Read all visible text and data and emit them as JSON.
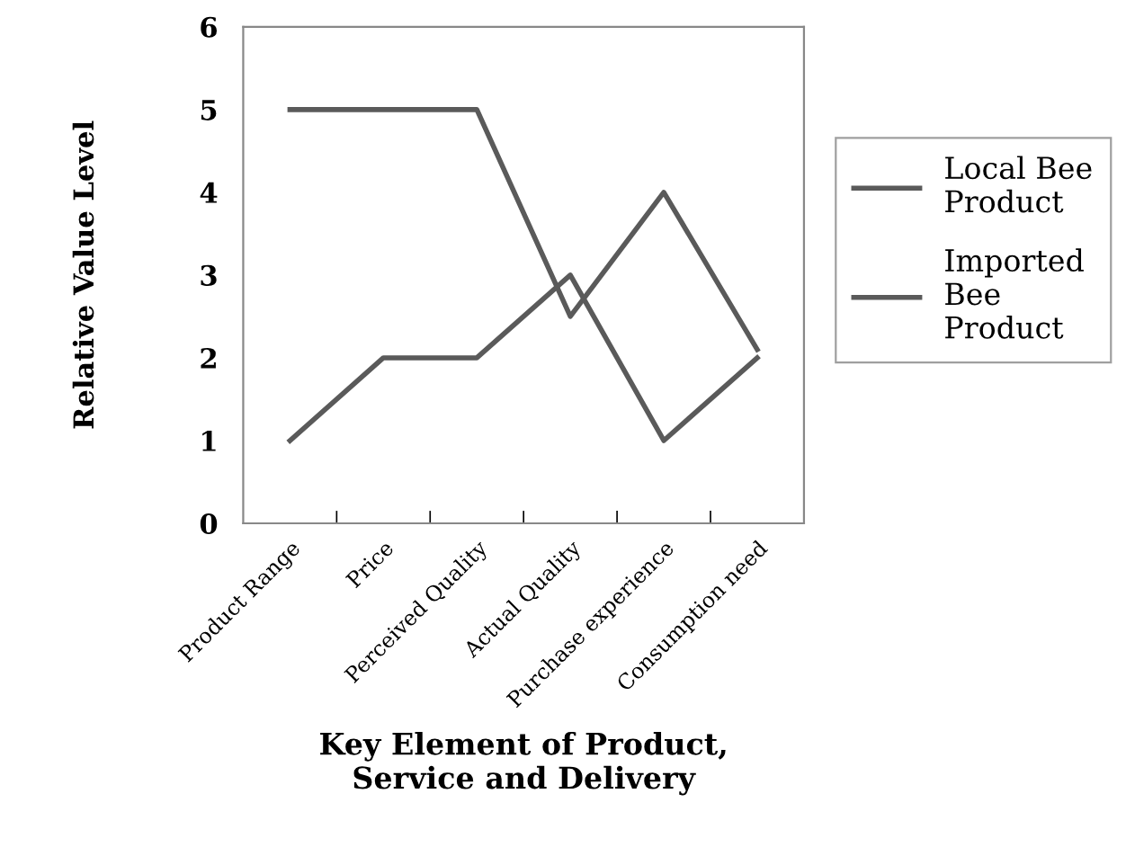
{
  "chart_data": {
    "type": "line",
    "xlabel": "Key Element of Product,\nService and Delivery",
    "ylabel": "Relative Value Level",
    "categories": [
      "Product Range",
      "Price",
      "Perceived Quality",
      "Actual Quality",
      "Purchase experience",
      "Consumption need"
    ],
    "series": [
      {
        "name": "Local Bee\nProduct",
        "color": "#5a5a5a",
        "values": [
          5,
          5,
          5,
          2.5,
          4,
          2.1
        ]
      },
      {
        "name": "Imported\nBee\nProduct",
        "color": "#5a5a5a",
        "values": [
          1,
          2,
          2,
          3,
          1,
          2
        ]
      }
    ],
    "ylim": [
      0,
      6
    ],
    "yticks": [
      0,
      1,
      2,
      3,
      4,
      5,
      6
    ],
    "grid": false,
    "legend": "right",
    "marker": "none",
    "line_style": "solid"
  }
}
